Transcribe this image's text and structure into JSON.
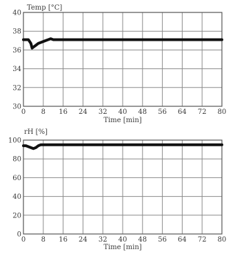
{
  "chart_data": [
    {
      "type": "line",
      "title": "Temp [°C]",
      "xlabel": "Time [min]",
      "ylabel": "",
      "xlim": [
        0,
        80
      ],
      "ylim": [
        30,
        40
      ],
      "x_ticks": [
        0,
        8,
        16,
        24,
        32,
        40,
        48,
        56,
        64,
        72,
        80
      ],
      "y_ticks": [
        30,
        32,
        34,
        36,
        38,
        40
      ],
      "grid": true,
      "series": [
        {
          "x": [
            0,
            2,
            3,
            3.5,
            4,
            5,
            6,
            7,
            8,
            9,
            10,
            11,
            12,
            14,
            20,
            40,
            60,
            80
          ],
          "y": [
            37.1,
            37.1,
            36.7,
            36.2,
            36.3,
            36.5,
            36.7,
            36.8,
            36.9,
            37.0,
            37.1,
            37.2,
            37.1,
            37.1,
            37.1,
            37.1,
            37.1,
            37.1
          ]
        }
      ]
    },
    {
      "type": "line",
      "title": "rH [%]",
      "xlabel": "Time [min]",
      "ylabel": "",
      "xlim": [
        0,
        80
      ],
      "ylim": [
        0,
        100
      ],
      "x_ticks": [
        0,
        8,
        16,
        24,
        32,
        40,
        48,
        56,
        64,
        72,
        80
      ],
      "y_ticks": [
        0,
        20,
        40,
        60,
        80,
        100
      ],
      "grid": true,
      "series": [
        {
          "x": [
            0,
            1,
            2,
            3,
            4,
            5,
            6,
            7,
            8,
            10,
            20,
            40,
            60,
            80
          ],
          "y": [
            94,
            94,
            93,
            92,
            91,
            92,
            94,
            95,
            95,
            95,
            95,
            95,
            95,
            95
          ]
        }
      ]
    }
  ],
  "colors": {
    "line": "#111111",
    "grid": "#8a8a8a",
    "axis": "#555555",
    "text": "#3a3a3a",
    "background": "#ffffff"
  }
}
